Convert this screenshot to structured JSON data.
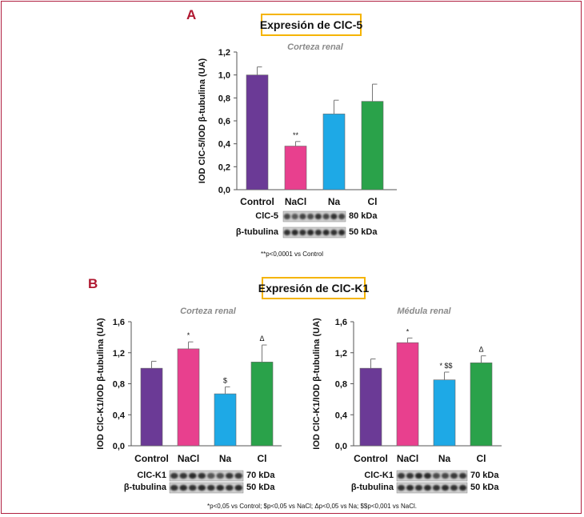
{
  "panel_a": {
    "letter": "A",
    "title": "Expresión de ClC-5",
    "blot_labels": [
      "ClC-5",
      "β-tubulina"
    ],
    "blot_kda": [
      "80 kDa",
      "50 kDa"
    ],
    "footnote": "**p<0,0001 vs Control"
  },
  "panel_b": {
    "letter": "B",
    "title": "Expresión de ClC-K1",
    "left_blot_labels": [
      "ClC-K1",
      "β-tubulina"
    ],
    "left_blot_kda": [
      "70 kDa",
      "50 kDa"
    ],
    "right_blot_labels": [
      "ClC-K1",
      "β-tubulina"
    ],
    "right_blot_kda": [
      "70 kDa",
      "50 kDa"
    ],
    "footnote": "*p<0,05 vs Control; $p<0,05 vs NaCl; Δp<0,05 vs Na; $$p<0,001 vs NaCl."
  },
  "colors": {
    "Control": "#6b3a96",
    "NaCl": "#e8408e",
    "Na": "#1ea9e6",
    "Cl": "#2aa24a"
  },
  "chart_data": [
    {
      "id": "a",
      "type": "bar",
      "title": "Corteza renal",
      "ylabel": "IOD ClC-5/IOD β-tubulina (UA)",
      "categories": [
        "Control",
        "NaCl",
        "Na",
        "Cl"
      ],
      "values": [
        1.0,
        0.38,
        0.66,
        0.77
      ],
      "errors": [
        0.07,
        0.04,
        0.12,
        0.15
      ],
      "annotations": [
        "",
        "**",
        "",
        ""
      ],
      "ylim": [
        0,
        1.2
      ],
      "yticks": [
        "0,0",
        "0,2",
        "0,4",
        "0,6",
        "0,8",
        "1,0",
        "1,2"
      ]
    },
    {
      "id": "b1",
      "type": "bar",
      "title": "Corteza renal",
      "ylabel": "IOD ClC-K1/IOD β-tubulina (UA)",
      "categories": [
        "Control",
        "NaCl",
        "Na",
        "Cl"
      ],
      "values": [
        1.0,
        1.25,
        0.67,
        1.08
      ],
      "errors": [
        0.09,
        0.09,
        0.09,
        0.22
      ],
      "annotations": [
        "",
        "*",
        "$",
        "Δ"
      ],
      "ylim": [
        0,
        1.6
      ],
      "yticks": [
        "0,0",
        "0,4",
        "0,8",
        "1,2",
        "1,6"
      ]
    },
    {
      "id": "b2",
      "type": "bar",
      "title": "Médula renal",
      "ylabel": "IOD ClC-K1/IOD β-tubulina (UA)",
      "categories": [
        "Control",
        "NaCl",
        "Na",
        "Cl"
      ],
      "values": [
        1.0,
        1.33,
        0.85,
        1.07
      ],
      "errors": [
        0.12,
        0.06,
        0.1,
        0.09
      ],
      "annotations": [
        "",
        "*",
        "* $$",
        "Δ"
      ],
      "ylim": [
        0,
        1.6
      ],
      "yticks": [
        "0,0",
        "0,4",
        "0,8",
        "1,2",
        "1,6"
      ]
    }
  ]
}
